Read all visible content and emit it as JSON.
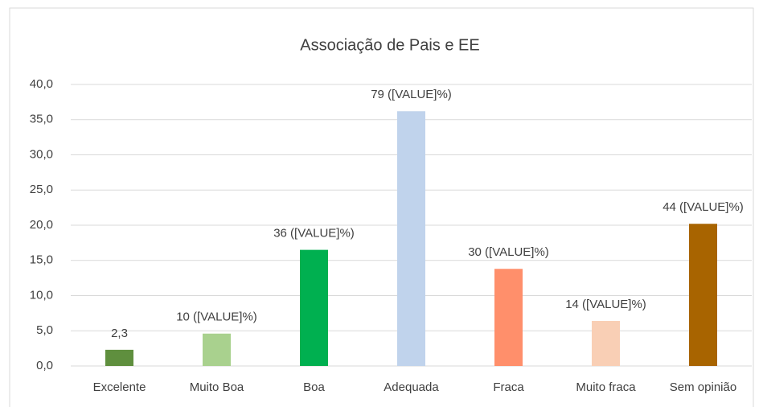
{
  "chart_data": {
    "type": "bar",
    "title": "Associação de Pais e EE",
    "categories": [
      "Excelente",
      "Muito Boa",
      "Boa",
      "Adequada",
      "Fraca",
      "Muito fraca",
      "Sem opinião"
    ],
    "values": [
      2.3,
      4.6,
      16.5,
      36.2,
      13.8,
      6.4,
      20.2
    ],
    "value_labels": [
      "2,3",
      "10 ([VALUE]%)",
      "36 ([VALUE]%)",
      "79 ([VALUE]%)",
      "30 ([VALUE]%)",
      "14 ([VALUE]%)",
      "44 ([VALUE]%)"
    ],
    "colors": [
      "#5f8f3e",
      "#a9d18e",
      "#00b050",
      "#c0d3ec",
      "#ff8f6b",
      "#f9cfb5",
      "#a86400"
    ],
    "ylim": [
      0,
      40
    ],
    "yticks": [
      {
        "value": 0,
        "label": "0,0"
      },
      {
        "value": 5,
        "label": "5,0"
      },
      {
        "value": 10,
        "label": "10,0"
      },
      {
        "value": 15,
        "label": "15,0"
      },
      {
        "value": 20,
        "label": "20,0"
      },
      {
        "value": 25,
        "label": "25,0"
      },
      {
        "value": 30,
        "label": "30,0"
      },
      {
        "value": 35,
        "label": "35,0"
      },
      {
        "value": 40,
        "label": "40,0"
      }
    ],
    "grid": true
  }
}
